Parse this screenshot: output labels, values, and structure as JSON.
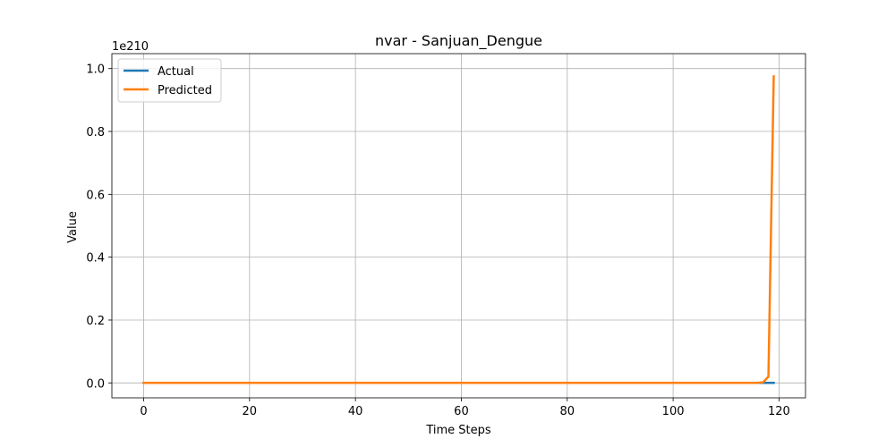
{
  "chart_data": {
    "type": "line",
    "title": "nvar - Sanjuan_Dengue",
    "xlabel": "Time Steps",
    "ylabel": "Value",
    "y_scale_label": "1e210",
    "xlim": [
      -6,
      125
    ],
    "ylim": [
      -0.0475,
      1.0475
    ],
    "x_ticks": [
      0,
      20,
      40,
      60,
      80,
      100,
      120
    ],
    "x_tick_labels": [
      "0",
      "20",
      "40",
      "60",
      "80",
      "100",
      "120"
    ],
    "y_ticks": [
      0.0,
      0.2,
      0.4,
      0.6,
      0.8,
      1.0
    ],
    "y_tick_labels": [
      "0.0",
      "0.2",
      "0.4",
      "0.6",
      "0.8",
      "1.0"
    ],
    "grid": true,
    "legend_position": "upper-left",
    "series": [
      {
        "name": "Actual",
        "color": "#1f77b4",
        "x": [
          0,
          119
        ],
        "y": [
          0,
          0
        ]
      },
      {
        "name": "Predicted",
        "color": "#ff7f0e",
        "x": [
          0,
          116,
          117,
          118,
          119
        ],
        "y": [
          0,
          0,
          0.002,
          0.02,
          0.975
        ]
      }
    ]
  }
}
